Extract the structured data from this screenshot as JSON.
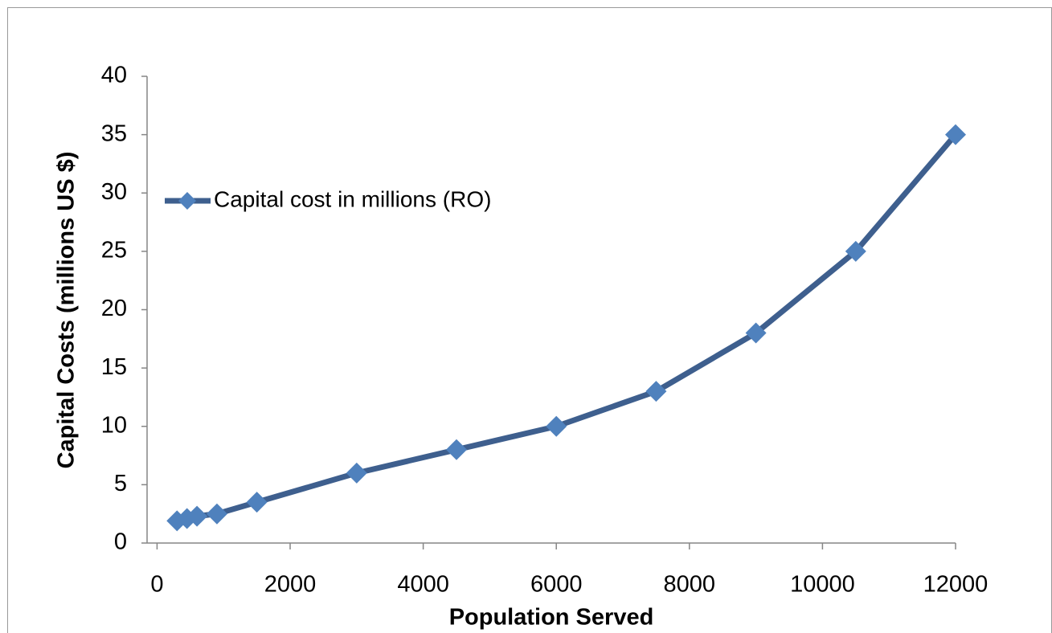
{
  "chart_data": {
    "type": "line",
    "x_label": "Population Served",
    "y_label": "Capital Costs (millions US $)",
    "series": [
      {
        "name": "Capital cost in millions (RO)",
        "color": "#4f81bd",
        "line_color": "#3e5f8e",
        "x": [
          300,
          450,
          600,
          900,
          1500,
          3000,
          4500,
          6000,
          7500,
          9000,
          10500,
          12000
        ],
        "values": [
          1.9,
          2.1,
          2.3,
          2.5,
          3.5,
          6,
          8,
          10,
          13,
          18,
          25,
          35
        ]
      }
    ],
    "xlim": [
      -150,
      12000
    ],
    "xticks": [
      0,
      2000,
      4000,
      6000,
      8000,
      10000,
      12000
    ],
    "ylim": [
      0,
      40
    ],
    "yticks": [
      0,
      5,
      10,
      15,
      20,
      25,
      30,
      35,
      40
    ],
    "grid": false,
    "legend": "left"
  }
}
